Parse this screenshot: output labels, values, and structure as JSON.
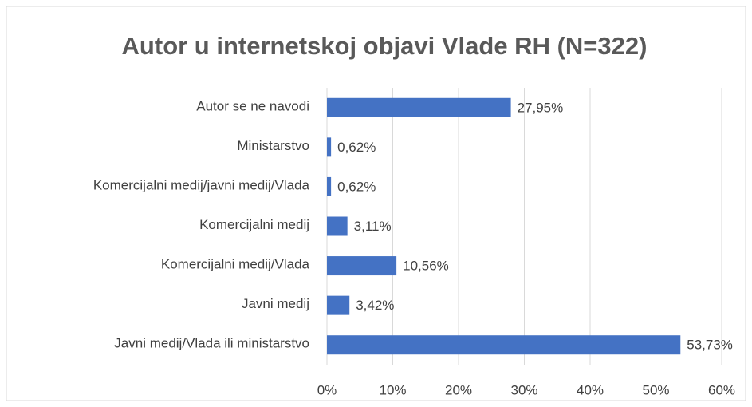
{
  "chart_data": {
    "type": "bar",
    "orientation": "horizontal",
    "title": "Autor u internetskoj objavi Vlade RH (N=322)",
    "categories": [
      "Autor se ne navodi",
      "Ministarstvo",
      "Komercijalni medij/javni medij/Vlada",
      "Komercijalni medij",
      "Komercijalni medij/Vlada",
      "Javni medij",
      "Javni medij/Vlada ili ministarstvo"
    ],
    "values": [
      27.95,
      0.62,
      0.62,
      3.11,
      10.56,
      3.42,
      53.73
    ],
    "value_labels": [
      "27,95%",
      "0,62%",
      "0,62%",
      "3,11%",
      "10,56%",
      "3,42%",
      "53,73%"
    ],
    "color": "#4472c4",
    "xlim": [
      0,
      60
    ],
    "xticks": [
      {
        "value": 0,
        "label": "0%"
      },
      {
        "value": 10,
        "label": "10%"
      },
      {
        "value": 20,
        "label": "20%"
      },
      {
        "value": 30,
        "label": "30%"
      },
      {
        "value": 40,
        "label": "40%"
      },
      {
        "value": 50,
        "label": "50%"
      },
      {
        "value": 60,
        "label": "60%"
      }
    ],
    "grid": true
  }
}
